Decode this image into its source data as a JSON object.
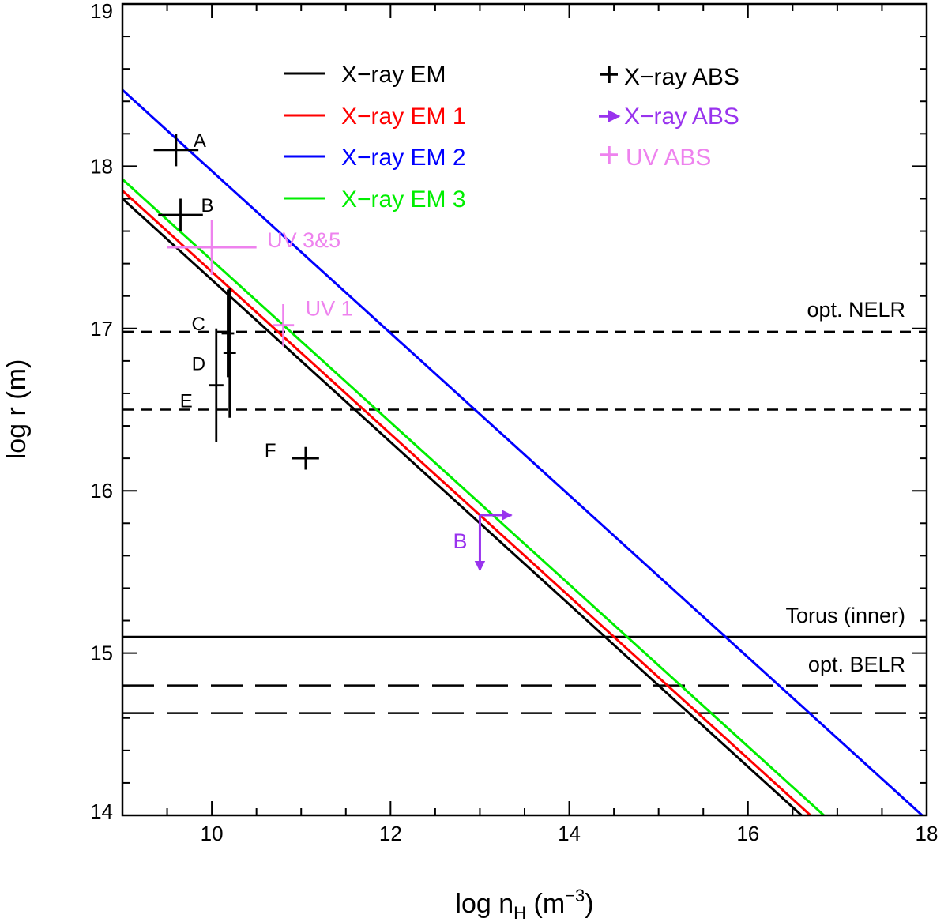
{
  "chart_data": {
    "type": "line",
    "title": "",
    "xlabel": {
      "main": "log n",
      "sub": "H",
      "unit_open": " (m",
      "unit_exp": "−3",
      "unit_close": ")"
    },
    "ylabel": "log r (m)",
    "xlim": [
      9,
      18
    ],
    "ylim": [
      14,
      19
    ],
    "xticks": [
      10,
      12,
      14,
      16,
      18
    ],
    "yticks": [
      14,
      15,
      16,
      17,
      18,
      19
    ],
    "xtick_labels": [
      "10",
      "12",
      "14",
      "16",
      "18"
    ],
    "ytick_labels": [
      "14",
      "15",
      "16",
      "17",
      "18",
      "19"
    ],
    "grid": false,
    "colors": {
      "black": "#000000",
      "red": "#ff0000",
      "blue": "#0000ff",
      "green": "#00ee00",
      "purple": "#9933ee",
      "pink": "#ee82ee"
    },
    "series": [
      {
        "name": "X−ray EM",
        "color": "#000000",
        "x": [
          9.0,
          16.6
        ],
        "y": [
          17.8,
          14.0
        ]
      },
      {
        "name": "X−ray EM 1",
        "color": "#ff0000",
        "x": [
          9.0,
          16.7
        ],
        "y": [
          17.85,
          14.0
        ]
      },
      {
        "name": "X−ray EM 2",
        "color": "#0000ff",
        "x": [
          9.0,
          17.95
        ],
        "y": [
          18.47,
          14.0
        ]
      },
      {
        "name": "X−ray EM 3",
        "color": "#00ee00",
        "x": [
          9.0,
          16.85
        ],
        "y": [
          17.92,
          14.0
        ]
      }
    ],
    "legend": {
      "position": "top",
      "lines": [
        {
          "label": "X−ray EM",
          "color": "#000000"
        },
        {
          "label": "X−ray EM 1",
          "color": "#ff0000"
        },
        {
          "label": "X−ray EM 2",
          "color": "#0000ff"
        },
        {
          "label": "X−ray EM 3",
          "color": "#00ee00"
        }
      ],
      "symbols": [
        {
          "label": "X−ray ABS",
          "color": "#000000",
          "symbol": "plus"
        },
        {
          "label": "X−ray ABS",
          "color": "#9933ee",
          "symbol": "arrow"
        },
        {
          "label": "UV ABS",
          "color": "#ee82ee",
          "symbol": "plus"
        }
      ]
    },
    "reference_lines": [
      {
        "y": 16.98,
        "style": "dashed",
        "label": "opt. NELR"
      },
      {
        "y": 16.5,
        "style": "dashed",
        "label": ""
      },
      {
        "y": 15.1,
        "style": "solid",
        "label": "Torus (inner)"
      },
      {
        "y": 14.8,
        "style": "longdash",
        "label": "opt. BELR"
      },
      {
        "y": 14.63,
        "style": "longdash",
        "label": ""
      }
    ],
    "xray_abs_points": [
      {
        "label": "A",
        "x": 9.6,
        "y": 18.1,
        "xerr": 0.25,
        "yerr": 0.1
      },
      {
        "label": "B",
        "x": 9.65,
        "y": 17.7,
        "xerr": 0.25,
        "yerr": 0.1
      },
      {
        "label": "C",
        "x": 10.18,
        "y": 16.97,
        "xerr": 0.07,
        "yerr": 0.27
      },
      {
        "label": "D",
        "x": 10.2,
        "y": 16.85,
        "xerr": 0.07,
        "yerr": 0.4
      },
      {
        "label": "E",
        "x": 10.05,
        "y": 16.65,
        "xerr": 0.08,
        "yerr": 0.35
      },
      {
        "label": "F",
        "x": 11.05,
        "y": 16.2,
        "xerr": 0.15,
        "yerr": 0.07
      }
    ],
    "uv_abs_points": [
      {
        "label": "UV 3&5",
        "x": 10.0,
        "y": 17.5,
        "xerr": 0.5,
        "yerr": 0.17
      },
      {
        "label": "UV 1",
        "x": 10.8,
        "y": 17.02,
        "xerr": 0.12,
        "yerr": 0.13
      }
    ],
    "xray_abs_limits": [
      {
        "label": "B",
        "x": 13.0,
        "y": 15.85,
        "x_limit": "lower",
        "y_limit": "upper"
      }
    ]
  }
}
